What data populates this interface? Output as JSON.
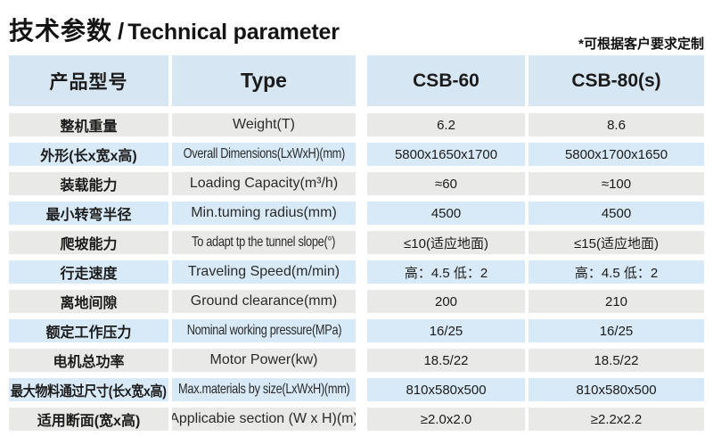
{
  "page": {
    "title_cn": "技术参数",
    "title_sep": "/",
    "title_en": "Technical parameter",
    "note": "*可根据客户要求定制"
  },
  "colors": {
    "header_bg": "#d7e6f3",
    "row_blue_bg": "#d8eaf7",
    "row_gray_bg": "#e9e9e7",
    "text": "#1b1b1b"
  },
  "table": {
    "headers": {
      "product_model_cn": "产品型号",
      "type": "Type",
      "model1": "CSB-60",
      "model2": "CSB-80(s)"
    },
    "rows": [
      {
        "cn": "整机重量",
        "en": "Weight(T)",
        "v1": "6.2",
        "v2": "8.6"
      },
      {
        "cn": "外形(长x宽x高)",
        "en": "Overall Dimensions(LxWxH)(mm)",
        "v1": "5800x1650x1700",
        "v2": "5800x1700x1650"
      },
      {
        "cn": "装载能力",
        "en": "Loading Capacity(m³/h)",
        "v1": "≈60",
        "v2": "≈100"
      },
      {
        "cn": "最小转弯半径",
        "en": "Min.tuming radius(mm)",
        "v1": "4500",
        "v2": "4500"
      },
      {
        "cn": "爬坡能力",
        "en": "To adapt tp the tunnel slope(°)",
        "v1": "≤10(适应地面)",
        "v2": "≤15(适应地面)"
      },
      {
        "cn": "行走速度",
        "en": "Traveling Speed(m/min)",
        "v1": "高：4.5 低：2",
        "v2": "高：4.5 低：2"
      },
      {
        "cn": "离地间隙",
        "en": "Ground clearance(mm)",
        "v1": "200",
        "v2": "210"
      },
      {
        "cn": "额定工作压力",
        "en": "Nominal working pressure(MPa)",
        "v1": "16/25",
        "v2": "16/25"
      },
      {
        "cn": "电机总功率",
        "en": "Motor Power(kw)",
        "v1": "18.5/22",
        "v2": "18.5/22"
      },
      {
        "cn": "最大物料通过尺寸(长x宽x高)",
        "en": "Max.materials by size(LxWxH)(mm)",
        "v1": "810x580x500",
        "v2": "810x580x500"
      },
      {
        "cn": "适用断面(宽x高)",
        "en": "Applicabie section (W x H)(m)",
        "v1": "≥2.0x2.0",
        "v2": "≥2.2x2.2"
      }
    ]
  }
}
